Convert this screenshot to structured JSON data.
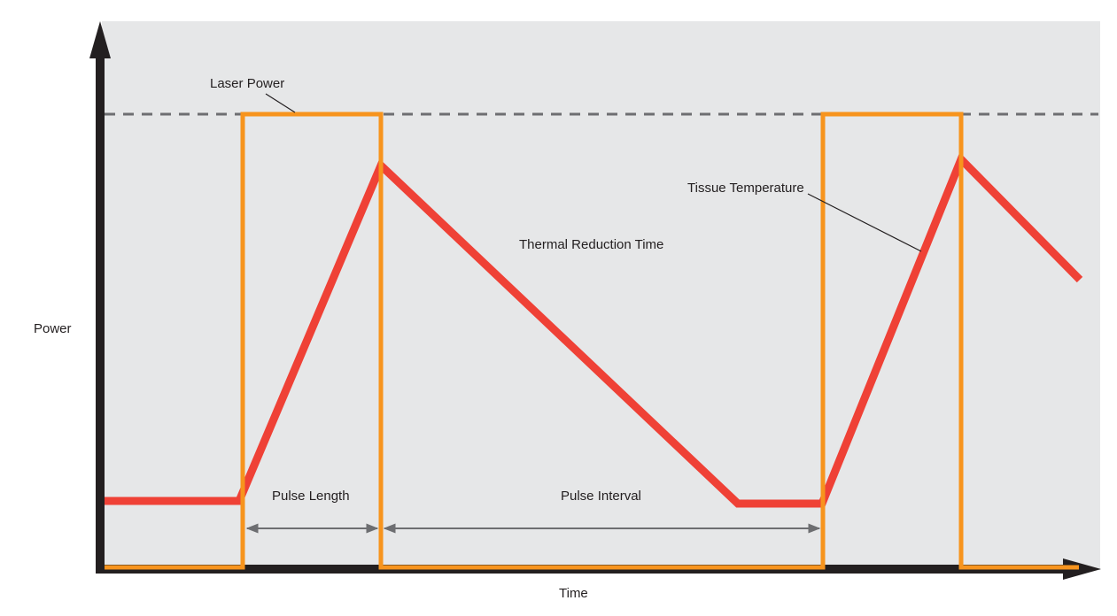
{
  "diagram": {
    "axis_labels": {
      "y": "Power",
      "x": "Time"
    },
    "annotations": {
      "laser_power": "Laser Power",
      "tissue_temperature": "Tissue Temperature",
      "thermal_reduction_time": "Thermal Reduction Time",
      "pulse_length": "Pulse Length",
      "pulse_interval": "Pulse Interval"
    },
    "colors": {
      "background": "#e6e7e8",
      "axis": "#231f20",
      "laser_pulse": "#f7941d",
      "tissue_temperature": "#ef4136",
      "threshold_dash": "#6d6e71",
      "dimension_arrow": "#6d6e71",
      "leader_line": "#231f20"
    }
  }
}
